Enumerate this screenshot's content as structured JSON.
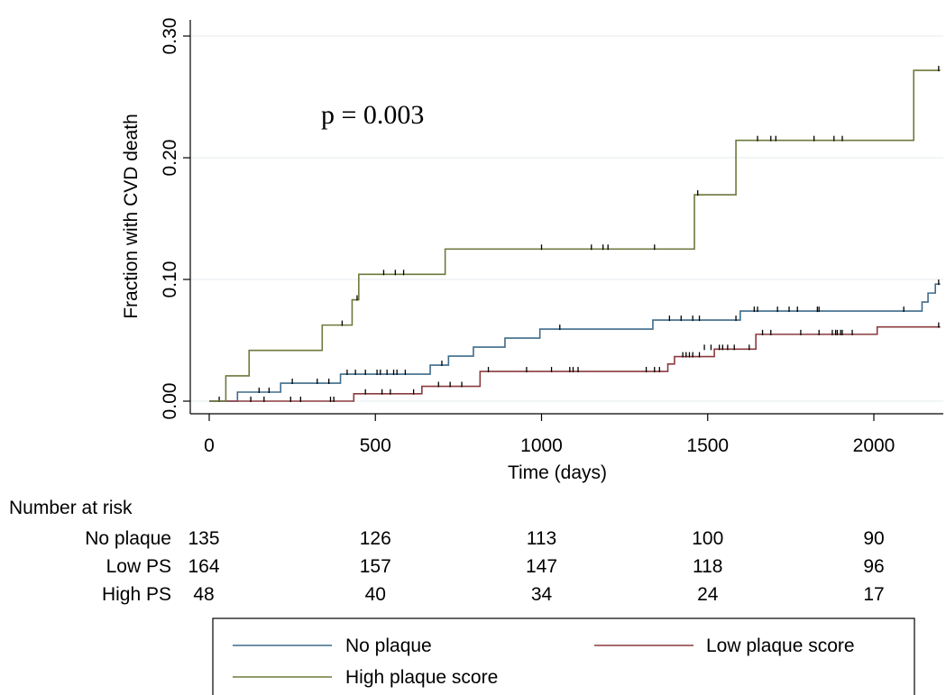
{
  "annotation": "p = 0.003",
  "chart_data": {
    "type": "line",
    "title": "",
    "xlabel": "Time (days)",
    "ylabel": "Fraction with CVD death",
    "xlim": [
      0,
      2200
    ],
    "ylim": [
      0,
      0.3
    ],
    "x_ticks": [
      0,
      500,
      1000,
      1500,
      2000
    ],
    "x_tick_labels": [
      "0",
      "500",
      "1000",
      "1500",
      "2000"
    ],
    "y_ticks": [
      0,
      0.1,
      0.2,
      0.3
    ],
    "y_tick_labels": [
      "0.00",
      "0.10",
      "0.20",
      "0.30"
    ],
    "grid": "horizontal",
    "series": [
      {
        "name": "No plaque",
        "color": "#3e6b8a",
        "steps": [
          [
            0,
            0
          ],
          [
            85,
            0.0074
          ],
          [
            215,
            0.0148
          ],
          [
            395,
            0.0222
          ],
          [
            665,
            0.0296
          ],
          [
            720,
            0.037
          ],
          [
            795,
            0.0444
          ],
          [
            890,
            0.0518
          ],
          [
            995,
            0.0592
          ],
          [
            1335,
            0.0666
          ],
          [
            1598,
            0.074
          ],
          [
            2145,
            0.0814
          ],
          [
            2163,
            0.0888
          ],
          [
            2185,
            0.0962
          ],
          [
            2200,
            0.0962
          ]
        ],
        "censor": [
          [
            150,
            0.0074
          ],
          [
            180,
            0.0074
          ],
          [
            250,
            0.0148
          ],
          [
            325,
            0.0148
          ],
          [
            360,
            0.0148
          ],
          [
            415,
            0.0222
          ],
          [
            440,
            0.0222
          ],
          [
            470,
            0.0222
          ],
          [
            505,
            0.0222
          ],
          [
            515,
            0.0222
          ],
          [
            535,
            0.0222
          ],
          [
            555,
            0.0222
          ],
          [
            565,
            0.0222
          ],
          [
            590,
            0.0222
          ],
          [
            700,
            0.0296
          ],
          [
            1055,
            0.0592
          ],
          [
            1385,
            0.0666
          ],
          [
            1420,
            0.0666
          ],
          [
            1455,
            0.0666
          ],
          [
            1475,
            0.0666
          ],
          [
            1585,
            0.0666
          ],
          [
            1640,
            0.074
          ],
          [
            1650,
            0.074
          ],
          [
            1710,
            0.074
          ],
          [
            1745,
            0.074
          ],
          [
            1770,
            0.074
          ],
          [
            1830,
            0.074
          ],
          [
            1835,
            0.074
          ],
          [
            2090,
            0.074
          ],
          [
            2195,
            0.0962
          ]
        ]
      },
      {
        "name": "Low plaque score",
        "color": "#8b3a3e",
        "steps": [
          [
            0,
            0
          ],
          [
            435,
            0.0061
          ],
          [
            640,
            0.0122
          ],
          [
            815,
            0.0244
          ],
          [
            1380,
            0.0305
          ],
          [
            1400,
            0.0366
          ],
          [
            1520,
            0.0427
          ],
          [
            1645,
            0.0549
          ],
          [
            2010,
            0.061
          ],
          [
            2200,
            0.061
          ]
        ],
        "censor": [
          [
            30,
            0
          ],
          [
            125,
            0
          ],
          [
            165,
            0
          ],
          [
            245,
            0
          ],
          [
            275,
            0
          ],
          [
            365,
            0
          ],
          [
            375,
            0
          ],
          [
            470,
            0.0061
          ],
          [
            520,
            0.0061
          ],
          [
            545,
            0.0061
          ],
          [
            615,
            0.0061
          ],
          [
            690,
            0.0122
          ],
          [
            725,
            0.0122
          ],
          [
            760,
            0.0122
          ],
          [
            840,
            0.0244
          ],
          [
            955,
            0.0244
          ],
          [
            1030,
            0.0244
          ],
          [
            1085,
            0.0244
          ],
          [
            1095,
            0.0244
          ],
          [
            1110,
            0.0244
          ],
          [
            1315,
            0.0244
          ],
          [
            1340,
            0.0244
          ],
          [
            1355,
            0.0244
          ],
          [
            1425,
            0.0366
          ],
          [
            1435,
            0.0366
          ],
          [
            1445,
            0.0366
          ],
          [
            1455,
            0.0366
          ],
          [
            1475,
            0.0366
          ],
          [
            1490,
            0.0427
          ],
          [
            1510,
            0.0427
          ],
          [
            1535,
            0.0427
          ],
          [
            1545,
            0.0427
          ],
          [
            1560,
            0.0427
          ],
          [
            1580,
            0.0427
          ],
          [
            1625,
            0.0427
          ],
          [
            1665,
            0.0549
          ],
          [
            1690,
            0.0549
          ],
          [
            1780,
            0.0549
          ],
          [
            1835,
            0.0549
          ],
          [
            1875,
            0.0549
          ],
          [
            1885,
            0.0549
          ],
          [
            1890,
            0.0549
          ],
          [
            1900,
            0.0549
          ],
          [
            1905,
            0.0549
          ],
          [
            1935,
            0.0549
          ],
          [
            2195,
            0.061
          ]
        ]
      },
      {
        "name": "High plaque score",
        "color": "#6b7a3c",
        "steps": [
          [
            0,
            0
          ],
          [
            50,
            0.0208
          ],
          [
            120,
            0.0417
          ],
          [
            340,
            0.0625
          ],
          [
            430,
            0.0833
          ],
          [
            450,
            0.1042
          ],
          [
            710,
            0.125
          ],
          [
            1460,
            0.1696
          ],
          [
            1585,
            0.2143
          ],
          [
            2120,
            0.2718
          ],
          [
            2200,
            0.2718
          ]
        ],
        "censor": [
          [
            400,
            0.0625
          ],
          [
            445,
            0.0833
          ],
          [
            525,
            0.1042
          ],
          [
            560,
            0.1042
          ],
          [
            585,
            0.1042
          ],
          [
            1000,
            0.125
          ],
          [
            1150,
            0.125
          ],
          [
            1185,
            0.125
          ],
          [
            1200,
            0.125
          ],
          [
            1340,
            0.125
          ],
          [
            1470,
            0.1696
          ],
          [
            1650,
            0.2143
          ],
          [
            1690,
            0.2143
          ],
          [
            1705,
            0.2143
          ],
          [
            1820,
            0.2143
          ],
          [
            1880,
            0.2143
          ],
          [
            1905,
            0.2143
          ],
          [
            2195,
            0.2718
          ]
        ]
      }
    ],
    "legend": {
      "placement": "bottom",
      "entries": [
        "No plaque",
        "Low plaque score",
        "High plaque score"
      ]
    },
    "risk_table": {
      "heading": "Number at risk",
      "times": [
        0,
        500,
        1000,
        1500,
        2000
      ],
      "rows": [
        {
          "label": "No plaque",
          "values": [
            "135",
            "126",
            "113",
            "100",
            "90"
          ]
        },
        {
          "label": "Low PS",
          "values": [
            "164",
            "157",
            "147",
            "118",
            "96"
          ]
        },
        {
          "label": "High PS",
          "values": [
            "48",
            "40",
            "34",
            "24",
            "17"
          ]
        }
      ]
    }
  }
}
